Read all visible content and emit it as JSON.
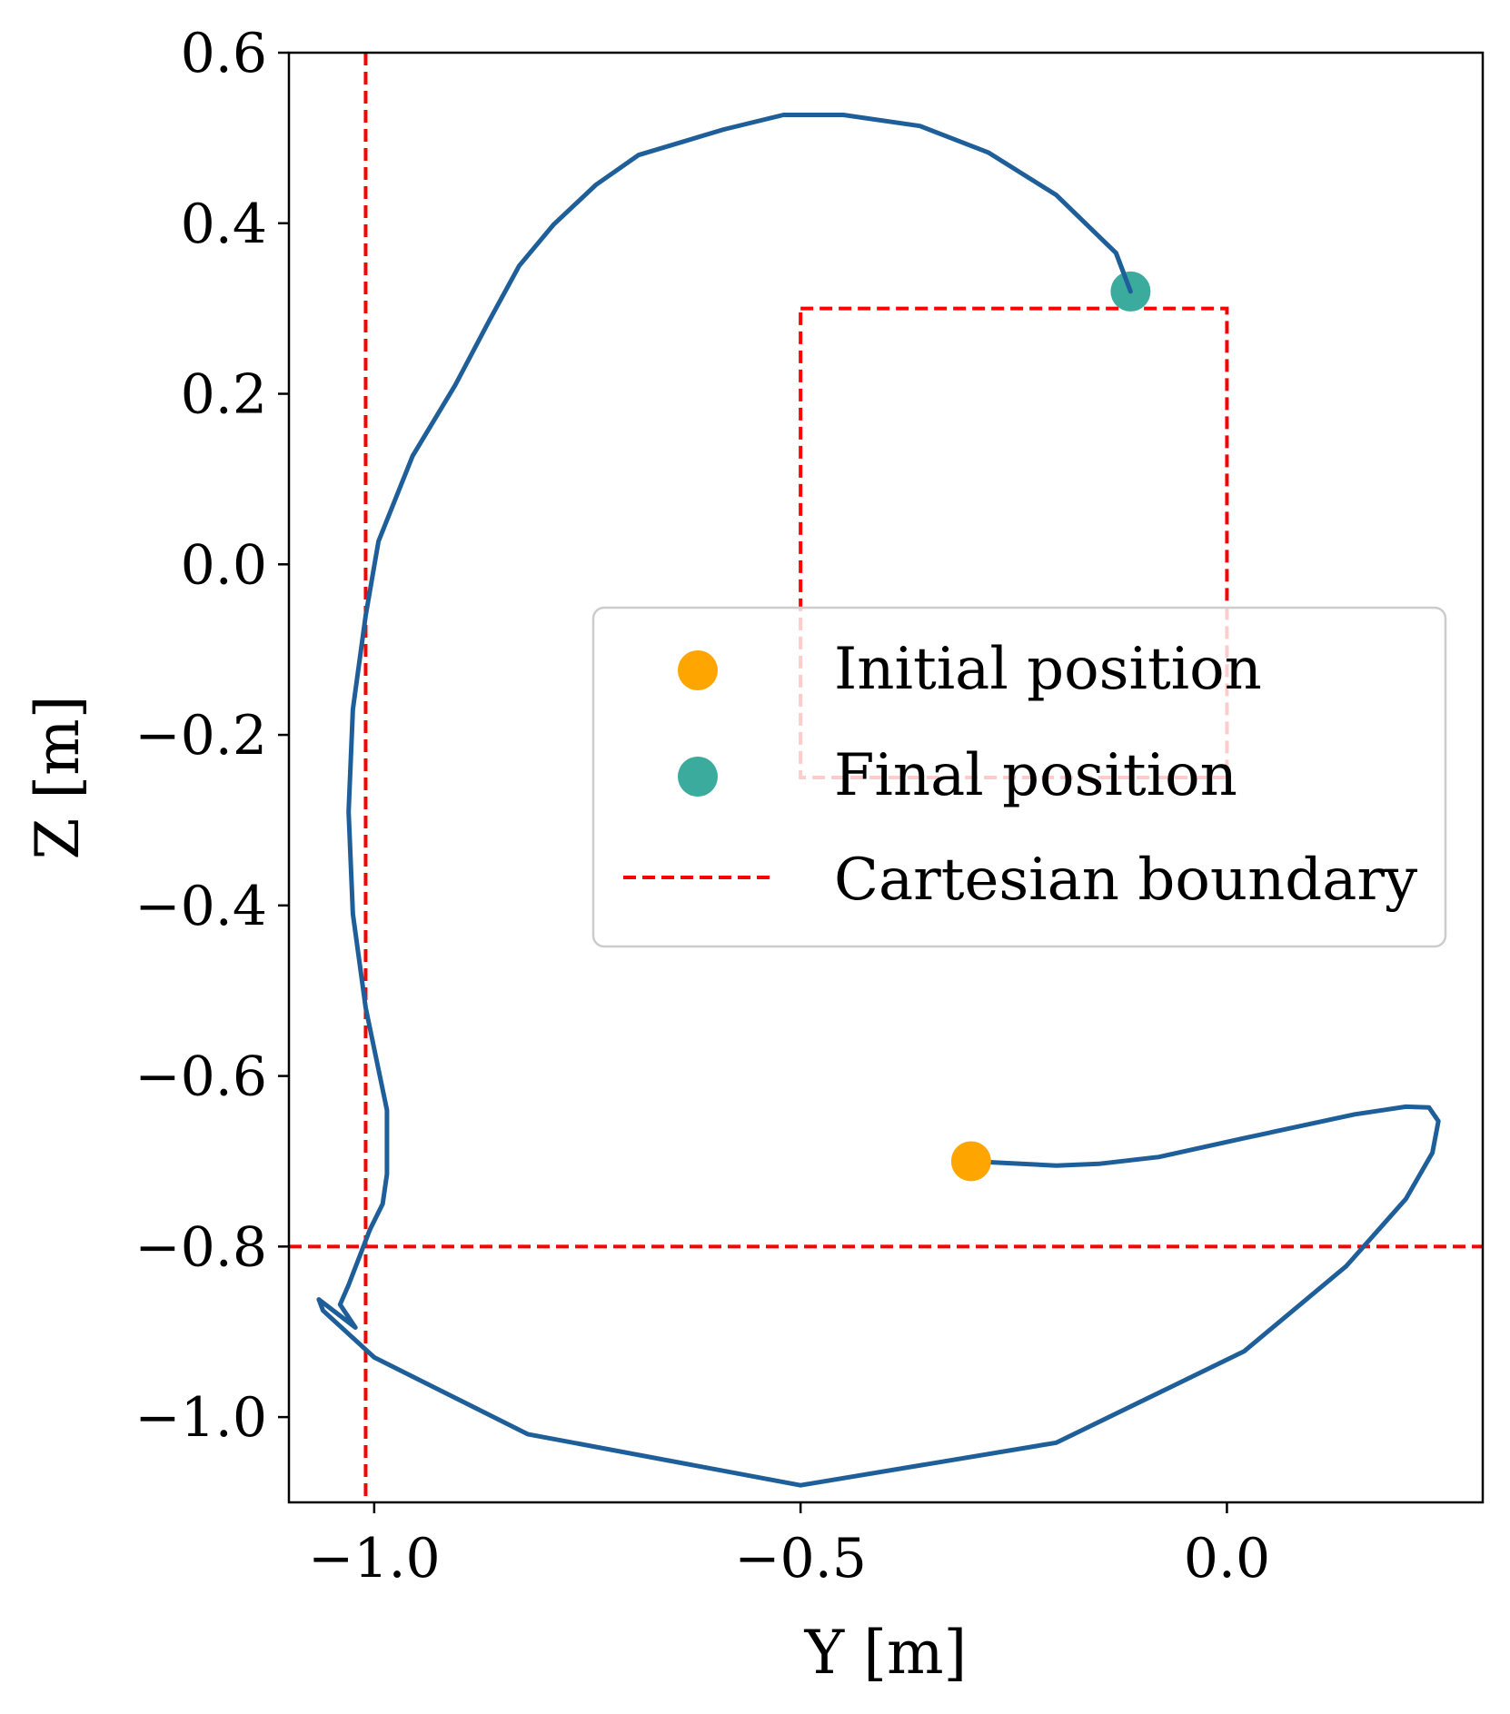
{
  "chart_data": {
    "type": "line",
    "title": "",
    "xlabel": "Y [m]",
    "ylabel": "Z [m]",
    "xlim": [
      -1.1,
      0.3
    ],
    "ylim": [
      -1.1,
      0.6
    ],
    "x_ticks": [
      -1.0,
      -0.5,
      0.0
    ],
    "x_tick_labels": [
      "−1.0",
      "−0.5",
      "0.0"
    ],
    "y_ticks": [
      0.6,
      0.4,
      0.2,
      0.0,
      -0.2,
      -0.4,
      -0.6,
      -0.8,
      -1.0
    ],
    "y_tick_labels": [
      "0.6",
      "0.4",
      "0.2",
      "0.0",
      "−0.2",
      "−0.4",
      "−0.6",
      "−0.8",
      "−1.0"
    ],
    "grid": false,
    "trajectory": {
      "name": "trajectory",
      "color": "#1f5f99",
      "points": [
        [
          -0.3,
          -0.7
        ],
        [
          -0.2,
          -0.705
        ],
        [
          -0.15,
          -0.703
        ],
        [
          -0.08,
          -0.695
        ],
        [
          0.02,
          -0.673
        ],
        [
          0.15,
          -0.645
        ],
        [
          0.21,
          -0.636
        ],
        [
          0.237,
          -0.637
        ],
        [
          0.248,
          -0.653
        ],
        [
          0.241,
          -0.69
        ],
        [
          0.21,
          -0.744
        ],
        [
          0.14,
          -0.823
        ],
        [
          0.02,
          -0.923
        ],
        [
          -0.2,
          -1.03
        ],
        [
          -0.5,
          -1.08
        ],
        [
          -0.82,
          -1.02
        ],
        [
          -1.0,
          -0.93
        ],
        [
          -1.06,
          -0.875
        ],
        [
          -1.065,
          -0.862
        ],
        [
          -1.022,
          -0.895
        ],
        [
          -1.04,
          -0.868
        ],
        [
          -1.03,
          -0.845
        ],
        [
          -1.005,
          -0.78
        ],
        [
          -0.99,
          -0.75
        ],
        [
          -0.985,
          -0.715
        ],
        [
          -0.985,
          -0.64
        ],
        [
          -1.01,
          -0.52
        ],
        [
          -1.025,
          -0.41
        ],
        [
          -1.03,
          -0.29
        ],
        [
          -1.025,
          -0.17
        ],
        [
          -1.01,
          -0.06
        ],
        [
          -0.995,
          0.027
        ],
        [
          -0.955,
          0.127
        ],
        [
          -0.905,
          0.21
        ],
        [
          -0.865,
          0.286
        ],
        [
          -0.83,
          0.35
        ],
        [
          -0.79,
          0.398
        ],
        [
          -0.74,
          0.445
        ],
        [
          -0.69,
          0.48
        ],
        [
          -0.59,
          0.51
        ],
        [
          -0.52,
          0.527
        ],
        [
          -0.45,
          0.527
        ],
        [
          -0.36,
          0.514
        ],
        [
          -0.28,
          0.483
        ],
        [
          -0.2,
          0.433
        ],
        [
          -0.13,
          0.365
        ],
        [
          -0.113,
          0.32
        ]
      ]
    },
    "initial_position": {
      "label": "Initial position",
      "y": -0.3,
      "z": -0.7,
      "color": "#ffa500"
    },
    "final_position": {
      "label": "Final position",
      "y": -0.113,
      "z": 0.32,
      "color": "#3aab9d"
    },
    "boundary": {
      "label": "Cartesian boundary",
      "color": "#ff0000",
      "vertical_line_y": -1.01,
      "horizontal_line_z": -0.8,
      "box": {
        "y_min": -0.5,
        "y_max": 0.0,
        "z_min": -0.25,
        "z_max": 0.3
      }
    },
    "legend": {
      "position": "center-right",
      "entries": [
        "Initial position",
        "Final position",
        "Cartesian boundary"
      ]
    }
  }
}
